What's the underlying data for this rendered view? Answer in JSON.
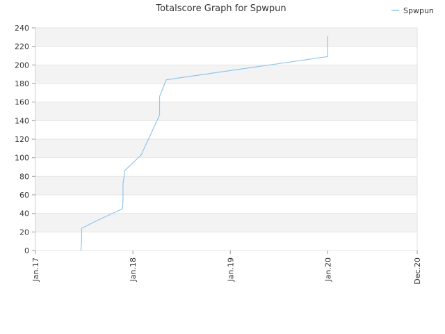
{
  "chart_data": {
    "type": "line",
    "title": "Totalscore Graph for Spwpun",
    "xlabel": "",
    "ylabel": "",
    "ylim": [
      0,
      240
    ],
    "yticks": [
      0,
      20,
      40,
      60,
      80,
      100,
      120,
      140,
      160,
      180,
      200,
      220,
      240
    ],
    "xlim": [
      "2017-01-01",
      "2020-12-01"
    ],
    "xticks": [
      {
        "date": "2017-01-01",
        "label": "Jan.17"
      },
      {
        "date": "2018-01-01",
        "label": "Jan.18"
      },
      {
        "date": "2019-01-01",
        "label": "Jan.19"
      },
      {
        "date": "2020-01-01",
        "label": "Jan.20"
      },
      {
        "date": "2020-12-01",
        "label": "Dec.20"
      }
    ],
    "grid": true,
    "legend": "top-right",
    "series": [
      {
        "name": "Spwpun",
        "color": "#8ec6ec",
        "points": [
          [
            "2017-06-20",
            0
          ],
          [
            "2017-06-23",
            10
          ],
          [
            "2017-06-23",
            24
          ],
          [
            "2017-08-25",
            33
          ],
          [
            "2017-11-23",
            45
          ],
          [
            "2017-11-25",
            55
          ],
          [
            "2017-11-25",
            72
          ],
          [
            "2017-11-29",
            80
          ],
          [
            "2017-12-01",
            86
          ],
          [
            "2018-02-01",
            103
          ],
          [
            "2018-04-11",
            146
          ],
          [
            "2018-04-11",
            166
          ],
          [
            "2018-05-06",
            184
          ],
          [
            "2020-01-01",
            209
          ],
          [
            "2020-01-01",
            231
          ]
        ]
      }
    ]
  }
}
